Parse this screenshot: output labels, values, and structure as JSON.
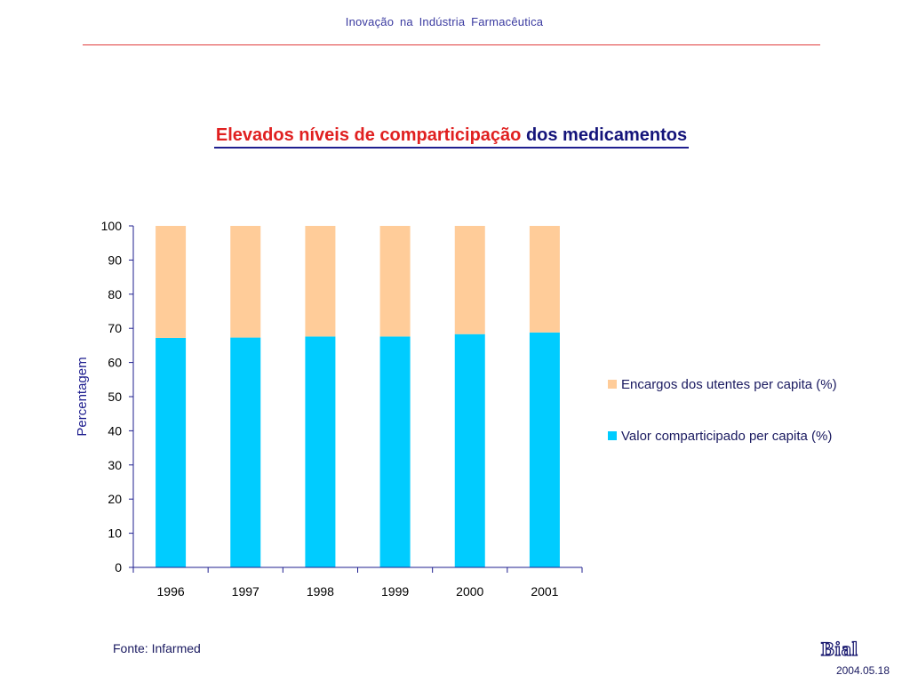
{
  "header": {
    "title": "Inovação  na  Indústria  Farmacêutica"
  },
  "slide": {
    "title_red": "Elevados níveis de comparticipação",
    "title_blue": "dos medicamentos"
  },
  "footer": {
    "source": "Fonte: Infarmed",
    "date": "2004.05.18",
    "logo_text": "Bial"
  },
  "colors": {
    "accent_red": "#e02020",
    "navy": "#1f1f8f",
    "series_valor": "#00ccff",
    "series_encargos": "#ffcc99"
  },
  "chart_data": {
    "type": "bar",
    "stacked": true,
    "categories": [
      "1996",
      "1997",
      "1998",
      "1999",
      "2000",
      "2001"
    ],
    "series": [
      {
        "name": "Valor comparticipado per capita (%)",
        "color": "#00ccff",
        "values": [
          67.2,
          67.3,
          67.6,
          67.6,
          68.3,
          68.8
        ]
      },
      {
        "name": "Encargos dos utentes per capita (%)",
        "color": "#ffcc99",
        "values": [
          32.8,
          32.7,
          32.4,
          32.4,
          31.7,
          31.2
        ]
      }
    ],
    "ylabel": "Percentagem",
    "xlabel": "",
    "ylim": [
      0,
      100
    ],
    "yticks": [
      0,
      10,
      20,
      30,
      40,
      50,
      60,
      70,
      80,
      90,
      100
    ],
    "grid": false,
    "legend": {
      "position": "right",
      "items": [
        "Encargos dos utentes per capita (%)",
        "Valor comparticipado per capita (%)"
      ]
    }
  }
}
